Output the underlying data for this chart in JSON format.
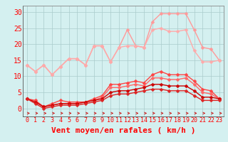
{
  "xlabel": "Vent moyen/en rafales ( km/h )",
  "x": [
    0,
    1,
    2,
    3,
    4,
    5,
    6,
    7,
    8,
    9,
    10,
    11,
    12,
    13,
    14,
    15,
    16,
    17,
    18,
    19,
    20,
    21,
    22,
    23
  ],
  "series": [
    {
      "color": "#ff9999",
      "linewidth": 1.0,
      "markersize": 2.5,
      "values": [
        13.5,
        11.5,
        13.5,
        10.5,
        13.0,
        15.5,
        15.5,
        13.5,
        19.5,
        19.5,
        14.5,
        19.0,
        24.5,
        19.5,
        19.0,
        27.0,
        29.5,
        29.5,
        29.5,
        29.5,
        24.5,
        19.0,
        18.5,
        15.0
      ]
    },
    {
      "color": "#ffaaaa",
      "linewidth": 1.0,
      "markersize": 2.5,
      "values": [
        13.5,
        11.5,
        13.5,
        10.5,
        13.0,
        15.5,
        15.5,
        13.5,
        19.5,
        19.5,
        14.5,
        19.0,
        19.5,
        19.5,
        19.0,
        24.5,
        25.0,
        24.0,
        24.0,
        24.5,
        18.0,
        14.5,
        14.5,
        15.0
      ]
    },
    {
      "color": "#ff4444",
      "linewidth": 1.0,
      "markersize": 2.5,
      "values": [
        3.0,
        2.5,
        0.5,
        1.5,
        2.5,
        2.0,
        2.0,
        2.0,
        3.0,
        4.0,
        7.5,
        7.5,
        8.0,
        8.5,
        8.0,
        10.5,
        11.5,
        10.5,
        10.5,
        10.5,
        8.5,
        6.0,
        5.5,
        3.0
      ]
    },
    {
      "color": "#ff6666",
      "linewidth": 1.0,
      "markersize": 2.5,
      "values": [
        3.0,
        2.0,
        0.5,
        1.0,
        1.5,
        1.5,
        1.5,
        2.0,
        2.5,
        3.5,
        6.5,
        6.5,
        7.0,
        7.5,
        7.0,
        9.5,
        9.5,
        9.0,
        9.0,
        9.5,
        7.5,
        5.0,
        4.5,
        3.0
      ]
    },
    {
      "color": "#cc0000",
      "linewidth": 1.0,
      "markersize": 2.5,
      "values": [
        3.0,
        2.0,
        0.5,
        1.0,
        1.5,
        1.5,
        1.5,
        2.0,
        2.5,
        3.0,
        5.0,
        5.5,
        5.5,
        6.0,
        6.5,
        7.5,
        7.5,
        7.0,
        7.0,
        7.0,
        5.5,
        3.5,
        3.5,
        3.0
      ]
    },
    {
      "color": "#dd2222",
      "linewidth": 1.0,
      "markersize": 2.5,
      "values": [
        3.0,
        1.5,
        0.0,
        0.5,
        1.0,
        1.0,
        1.0,
        1.5,
        2.0,
        2.5,
        4.0,
        4.5,
        4.5,
        5.0,
        5.5,
        6.0,
        6.0,
        5.5,
        5.5,
        5.5,
        4.0,
        2.5,
        2.5,
        2.5
      ]
    }
  ],
  "ylim": [
    -2.5,
    32
  ],
  "yticks": [
    0,
    5,
    10,
    15,
    20,
    25,
    30
  ],
  "xlim": [
    -0.5,
    23.5
  ],
  "bg_color": "#d4f0f0",
  "grid_color": "#aacccc",
  "tick_color": "#ff0000",
  "label_color": "#ff0000",
  "xlabel_fontsize": 8,
  "ytick_fontsize": 7,
  "xtick_fontsize": 6
}
